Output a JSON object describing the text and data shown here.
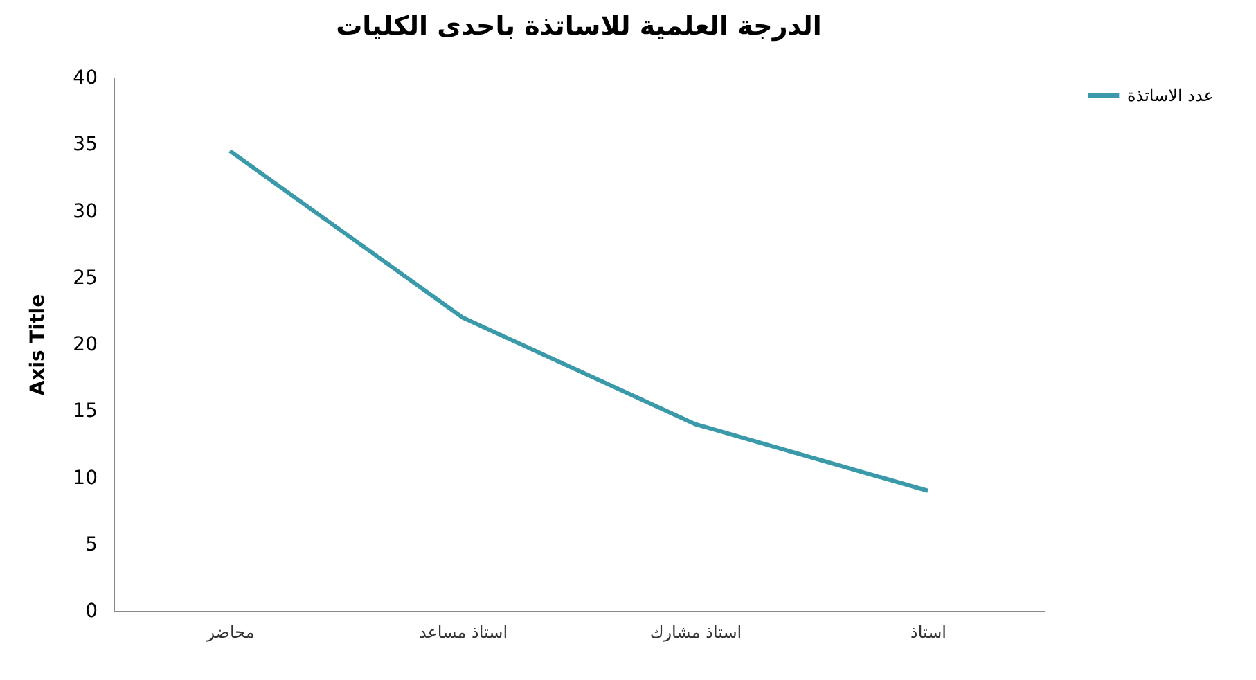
{
  "chart_data": {
    "type": "line",
    "title": "الدرجة العلمية للاساتذة باحدى الكليات",
    "ylabel": "Axis Title",
    "categories": [
      "محاضر",
      "استاذ مساعد",
      "استاذ مشارك",
      "استاذ"
    ],
    "series": [
      {
        "name": "عدد الاساتذة",
        "color": "#3a9aaa",
        "values": [
          34.5,
          22,
          14,
          9
        ]
      }
    ],
    "ylim": [
      0,
      40
    ],
    "yticks": [
      0,
      5,
      10,
      15,
      20,
      25,
      30,
      35,
      40
    ],
    "grid": false,
    "legend": "right",
    "marker": "none"
  }
}
